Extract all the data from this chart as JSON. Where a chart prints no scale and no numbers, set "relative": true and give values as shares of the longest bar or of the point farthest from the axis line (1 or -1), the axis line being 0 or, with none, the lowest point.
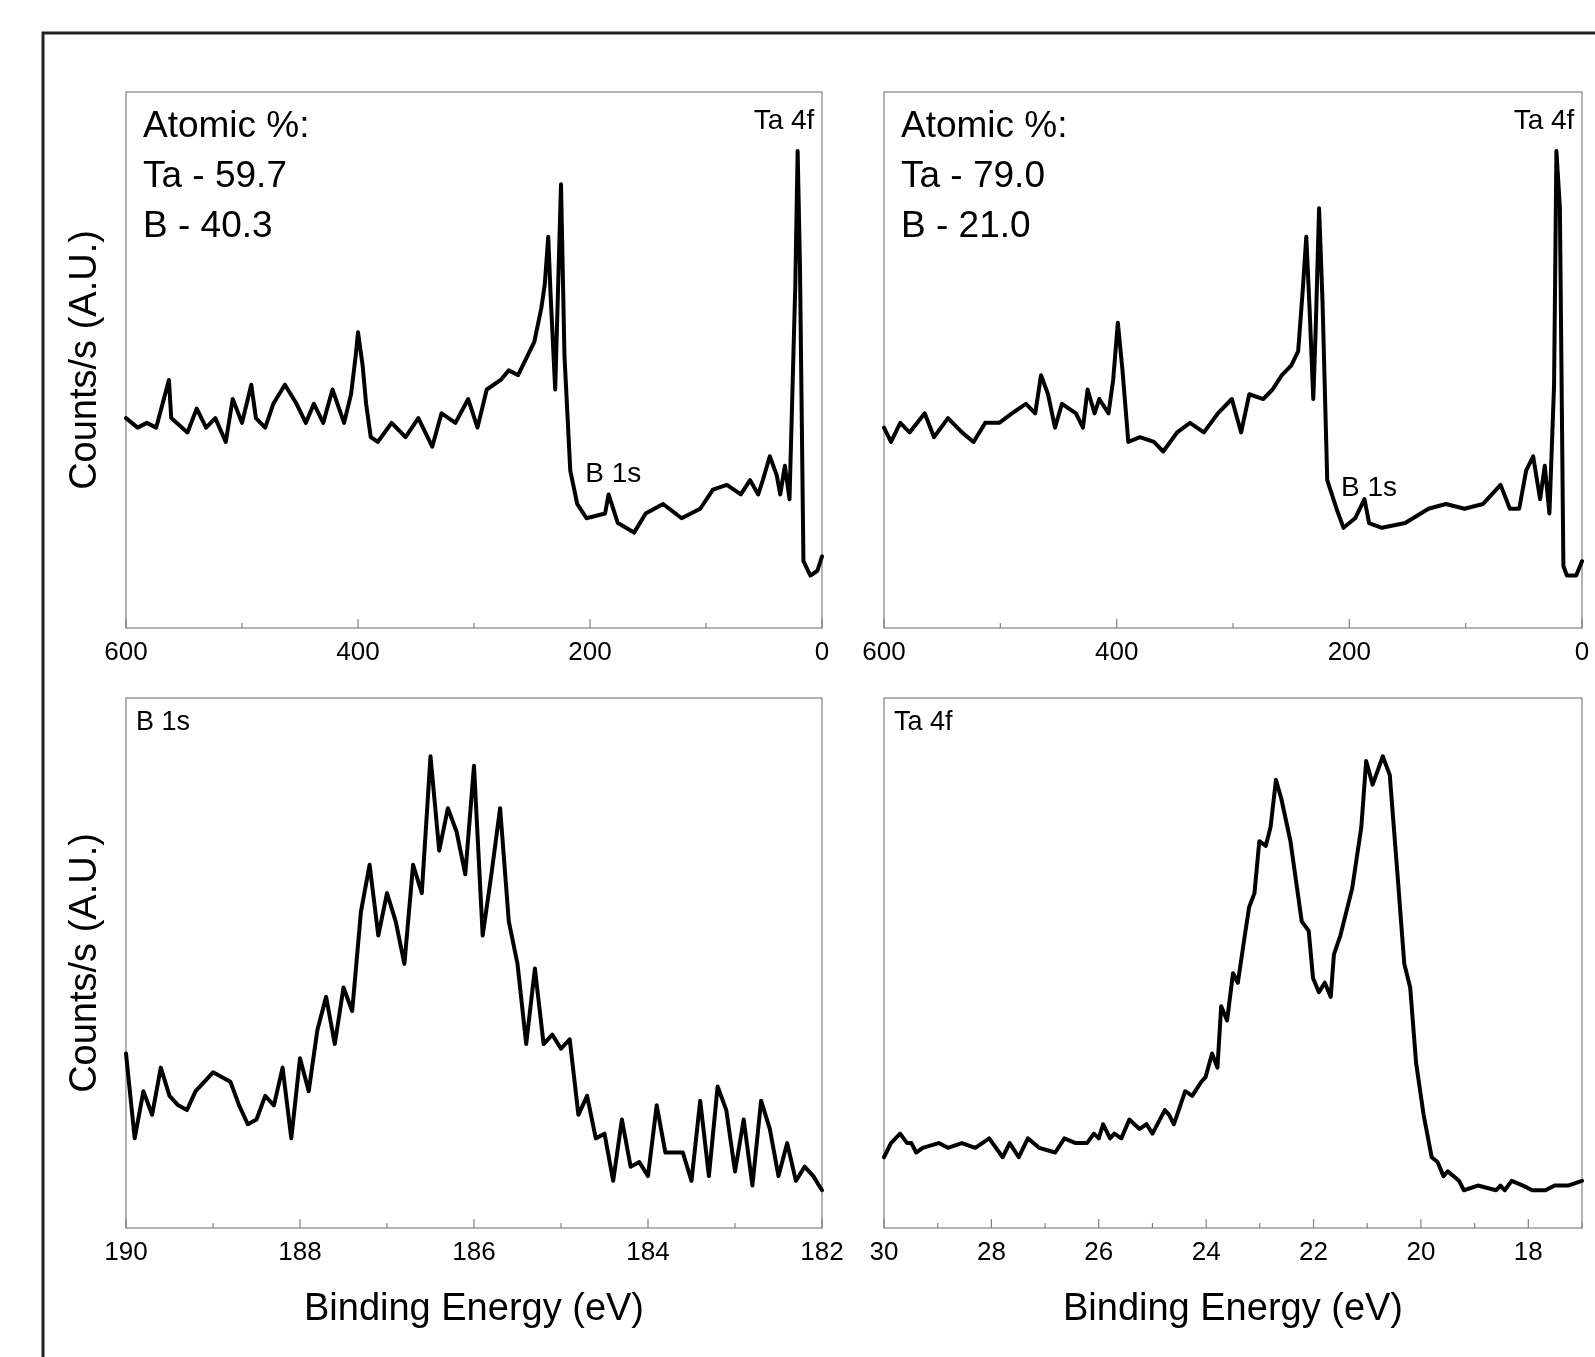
{
  "chart_data": [
    {
      "type": "line",
      "relative": true,
      "color": "#000000",
      "ylabel": "Counts/s (A.U.)",
      "xlim": [
        600,
        0
      ],
      "xticks": [
        600,
        {
          "value": 500,
          "label": null
        },
        400,
        {
          "value": 300,
          "label": null
        },
        200,
        {
          "value": 100,
          "label": null
        },
        0
      ],
      "annotations": [
        "Atomic %:",
        "Ta - 59.7",
        "B - 40.3",
        {
          "text": "Ta 4f",
          "x": 21,
          "y": 1
        },
        {
          "text": "B 1s",
          "x": 180,
          "y": 0.26
        }
      ],
      "x": [
        600,
        590,
        582,
        574,
        563,
        561,
        547,
        539,
        531,
        523,
        514,
        508,
        500,
        492,
        488,
        480,
        473,
        463,
        453,
        445,
        438,
        430,
        422,
        412,
        406,
        402,
        400,
        396,
        393,
        389,
        383,
        371,
        359,
        348,
        336,
        328,
        316,
        305,
        297,
        289,
        277,
        270,
        262,
        254,
        248,
        242,
        239,
        236,
        234,
        230,
        225,
        222,
        217,
        211,
        203,
        187,
        184,
        176,
        162,
        152,
        137,
        121,
        105,
        94,
        82,
        70,
        62,
        55,
        51,
        45,
        39,
        36,
        32,
        28,
        23,
        21,
        19,
        16,
        10,
        4,
        0
      ],
      "values": [
        0.44,
        0.42,
        0.43,
        0.42,
        0.52,
        0.44,
        0.41,
        0.46,
        0.42,
        0.44,
        0.39,
        0.48,
        0.43,
        0.51,
        0.44,
        0.42,
        0.47,
        0.51,
        0.47,
        0.43,
        0.47,
        0.43,
        0.5,
        0.43,
        0.49,
        0.57,
        0.62,
        0.55,
        0.47,
        0.4,
        0.39,
        0.43,
        0.4,
        0.44,
        0.38,
        0.45,
        0.43,
        0.48,
        0.42,
        0.5,
        0.52,
        0.54,
        0.53,
        0.57,
        0.6,
        0.67,
        0.72,
        0.82,
        0.7,
        0.5,
        0.93,
        0.57,
        0.33,
        0.26,
        0.23,
        0.24,
        0.28,
        0.22,
        0.2,
        0.24,
        0.26,
        0.23,
        0.25,
        0.29,
        0.3,
        0.28,
        0.31,
        0.28,
        0.31,
        0.36,
        0.32,
        0.28,
        0.34,
        0.27,
        0.72,
        1,
        0.76,
        0.14,
        0.11,
        0.12,
        0.15
      ]
    },
    {
      "type": "line",
      "relative": true,
      "color": "#000000",
      "xlim": [
        600,
        0
      ],
      "xticks": [
        600,
        {
          "value": 500,
          "label": null
        },
        400,
        {
          "value": 300,
          "label": null
        },
        200,
        {
          "value": 100,
          "label": null
        },
        0
      ],
      "annotations": [
        "Atomic %:",
        "Ta - 79.0",
        "B - 21.0",
        {
          "text": "Ta 4f",
          "x": 22,
          "y": 1
        },
        {
          "text": "B 1s",
          "x": 183,
          "y": 0.23
        }
      ],
      "x": [
        600,
        594,
        586,
        578,
        565,
        557,
        545,
        533,
        523,
        513,
        501,
        490,
        478,
        470,
        465,
        459,
        453,
        447,
        435,
        429,
        425,
        419,
        415,
        407,
        403,
        399,
        395,
        390,
        380,
        368,
        360,
        348,
        337,
        325,
        313,
        301,
        293,
        286,
        274,
        266,
        258,
        250,
        244,
        240,
        237,
        234,
        231,
        229,
        226,
        223,
        219,
        211,
        205,
        195,
        187,
        183,
        172,
        152,
        132,
        117,
        101,
        85,
        70,
        62,
        54,
        48,
        42,
        36,
        32,
        28,
        24,
        22,
        19,
        16,
        13,
        5,
        0
      ],
      "values": [
        0.42,
        0.39,
        0.43,
        0.41,
        0.45,
        0.4,
        0.44,
        0.41,
        0.39,
        0.43,
        0.43,
        0.45,
        0.47,
        0.45,
        0.53,
        0.49,
        0.42,
        0.47,
        0.45,
        0.42,
        0.5,
        0.45,
        0.48,
        0.45,
        0.52,
        0.64,
        0.54,
        0.39,
        0.4,
        0.39,
        0.37,
        0.41,
        0.43,
        0.41,
        0.45,
        0.48,
        0.41,
        0.49,
        0.48,
        0.5,
        0.53,
        0.55,
        0.58,
        0.71,
        0.82,
        0.66,
        0.48,
        0.62,
        0.88,
        0.68,
        0.31,
        0.25,
        0.21,
        0.23,
        0.27,
        0.22,
        0.21,
        0.22,
        0.25,
        0.26,
        0.25,
        0.26,
        0.3,
        0.25,
        0.25,
        0.33,
        0.36,
        0.27,
        0.34,
        0.24,
        0.51,
        1,
        0.88,
        0.13,
        0.11,
        0.11,
        0.14
      ]
    },
    {
      "type": "line",
      "relative": true,
      "color": "#000000",
      "ylabel": "Counts/s (A.U.)",
      "xlabel": "Binding Energy (eV)",
      "xlim": [
        190,
        182
      ],
      "xticks": [
        190,
        {
          "value": 189,
          "label": null
        },
        188,
        {
          "value": 187,
          "label": null
        },
        186,
        {
          "value": 185,
          "label": null
        },
        184,
        {
          "value": 183,
          "label": null
        },
        182
      ],
      "annotations": [
        "B 1s"
      ],
      "x": [
        190,
        189.9,
        189.8,
        189.7,
        189.6,
        189.5,
        189.4,
        189.3,
        189.2,
        189.1,
        189,
        188.9,
        188.8,
        188.7,
        188.6,
        188.5,
        188.4,
        188.3,
        188.2,
        188.1,
        188,
        187.9,
        187.8,
        187.7,
        187.6,
        187.5,
        187.4,
        187.3,
        187.2,
        187.1,
        187,
        186.9,
        186.8,
        186.7,
        186.6,
        186.5,
        186.4,
        186.3,
        186.2,
        186.1,
        186,
        185.9,
        185.8,
        185.7,
        185.6,
        185.5,
        185.4,
        185.3,
        185.2,
        185.1,
        185,
        184.9,
        184.8,
        184.7,
        184.6,
        184.5,
        184.4,
        184.3,
        184.2,
        184.1,
        184,
        183.9,
        183.8,
        183.7,
        183.6,
        183.5,
        183.4,
        183.3,
        183.2,
        183.1,
        183,
        182.9,
        182.8,
        182.7,
        182.6,
        182.5,
        182.4,
        182.3,
        182.2,
        182.1,
        182
      ],
      "values": [
        0.37,
        0.19,
        0.29,
        0.24,
        0.34,
        0.28,
        0.26,
        0.25,
        0.29,
        0.31,
        0.33,
        0.32,
        0.31,
        0.26,
        0.22,
        0.23,
        0.28,
        0.26,
        0.34,
        0.19,
        0.36,
        0.29,
        0.42,
        0.49,
        0.39,
        0.51,
        0.46,
        0.67,
        0.77,
        0.62,
        0.71,
        0.65,
        0.56,
        0.77,
        0.71,
        1,
        0.8,
        0.89,
        0.84,
        0.75,
        0.98,
        0.62,
        0.75,
        0.89,
        0.65,
        0.56,
        0.39,
        0.55,
        0.39,
        0.41,
        0.38,
        0.4,
        0.24,
        0.28,
        0.19,
        0.2,
        0.1,
        0.23,
        0.13,
        0.14,
        0.11,
        0.26,
        0.16,
        0.16,
        0.16,
        0.1,
        0.27,
        0.11,
        0.3,
        0.25,
        0.12,
        0.23,
        0.09,
        0.27,
        0.21,
        0.11,
        0.18,
        0.1,
        0.13,
        0.11,
        0.08
      ]
    },
    {
      "type": "line",
      "relative": true,
      "color": "#000000",
      "xlabel": "Binding Energy (eV)",
      "xlim": [
        30,
        17
      ],
      "xticks": [
        30,
        {
          "value": 29,
          "label": null
        },
        28,
        {
          "value": 27,
          "label": null
        },
        26,
        {
          "value": 25,
          "label": null
        },
        24,
        {
          "value": 23,
          "label": null
        },
        22,
        {
          "value": 21,
          "label": null
        },
        20,
        {
          "value": 19,
          "label": null
        },
        18,
        {
          "value": 17,
          "label": null
        }
      ],
      "annotations": [
        "Ta 4f"
      ],
      "x": [
        30,
        29.87,
        29.7,
        29.57,
        29.49,
        29.4,
        29.28,
        28.98,
        28.81,
        28.55,
        28.3,
        28.04,
        27.79,
        27.66,
        27.49,
        27.32,
        27.11,
        26.81,
        26.64,
        26.43,
        26.22,
        26.09,
        26,
        25.92,
        25.79,
        25.71,
        25.58,
        25.43,
        25.24,
        25.11,
        25,
        24.77,
        24.69,
        24.6,
        24.39,
        24.26,
        24.09,
        24.01,
        23.89,
        23.79,
        23.72,
        23.61,
        23.5,
        23.41,
        23.28,
        23.2,
        23.1,
        23.01,
        22.89,
        22.8,
        22.7,
        22.6,
        22.43,
        22.22,
        22.09,
        22.01,
        21.9,
        21.79,
        21.68,
        21.62,
        21.5,
        21.28,
        21.11,
        21.02,
        20.9,
        20.71,
        20.58,
        20.43,
        20.31,
        20.2,
        20.09,
        19.95,
        19.8,
        19.69,
        19.58,
        19.5,
        19.29,
        19.2,
        18.94,
        18.6,
        18.52,
        18.44,
        18.31,
        18.1,
        17.93,
        17.81,
        17.68,
        17.51,
        17.26,
        17
      ],
      "values": [
        0.15,
        0.18,
        0.2,
        0.18,
        0.18,
        0.16,
        0.17,
        0.18,
        0.17,
        0.18,
        0.17,
        0.19,
        0.15,
        0.18,
        0.15,
        0.19,
        0.17,
        0.16,
        0.19,
        0.18,
        0.18,
        0.2,
        0.19,
        0.22,
        0.19,
        0.2,
        0.19,
        0.23,
        0.21,
        0.22,
        0.2,
        0.25,
        0.24,
        0.22,
        0.29,
        0.28,
        0.31,
        0.32,
        0.37,
        0.34,
        0.47,
        0.44,
        0.54,
        0.52,
        0.62,
        0.68,
        0.71,
        0.82,
        0.81,
        0.85,
        0.95,
        0.91,
        0.82,
        0.65,
        0.63,
        0.53,
        0.5,
        0.52,
        0.49,
        0.58,
        0.62,
        0.72,
        0.85,
        0.99,
        0.94,
        1,
        0.96,
        0.74,
        0.56,
        0.51,
        0.35,
        0.24,
        0.15,
        0.14,
        0.11,
        0.12,
        0.1,
        0.08,
        0.09,
        0.08,
        0.09,
        0.08,
        0.1,
        0.09,
        0.08,
        0.08,
        0.08,
        0.09,
        0.09,
        0.1
      ]
    }
  ]
}
